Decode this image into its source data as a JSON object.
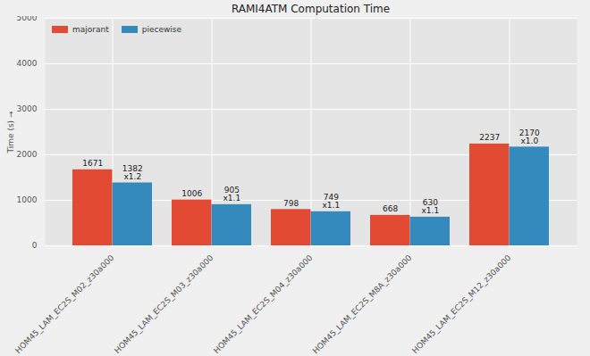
{
  "chart_data": {
    "type": "bar",
    "title": "RAMI4ATM Computation Time",
    "categories": [
      "HOM45_LAM_EC2S_M02_z30a000",
      "HOM45_LAM_EC2S_M03_z30a000",
      "HOM45_LAM_EC2S_M04_z30a000",
      "HOM45_LAM_EC2S_M8A_z30a000",
      "HOM45_LAM_EC2S_M12_z30a000"
    ],
    "series": [
      {
        "name": "majorant",
        "color": "#E24A33",
        "values": [
          1671,
          1006,
          798,
          668,
          2237
        ]
      },
      {
        "name": "piecewise",
        "color": "#348ABD",
        "values": [
          1382,
          905,
          749,
          630,
          2170
        ],
        "annotations": [
          "x1.2",
          "x1.1",
          "x1.1",
          "x1.1",
          "x1.0"
        ]
      }
    ],
    "y_label": "Time (s)",
    "ylim": [
      0,
      5000
    ],
    "yticks": [
      0,
      1000,
      2000,
      3000,
      4000,
      5000
    ],
    "grid": true,
    "legend": "upper left",
    "data_labels": true
  }
}
